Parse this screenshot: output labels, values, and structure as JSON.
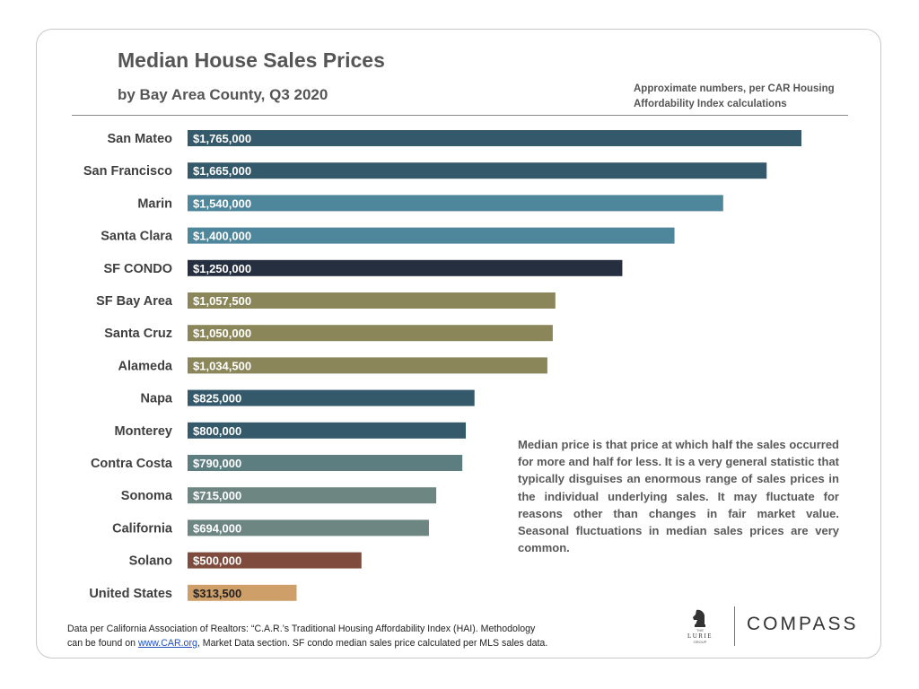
{
  "header": {
    "title": "Median House Sales Prices",
    "subtitle": "by Bay Area County, Q3 2020",
    "note_line1": "Approximate numbers, per CAR Housing",
    "note_line2": "Affordability Index calculations"
  },
  "description": "Median price is that price at which half the sales occurred for more and half for less. It is a very general statistic that typically disguises an enormous range of sales prices in the individual underlying sales. It may fluctuate for reasons other than changes in fair market value. Seasonal fluctuations in median sales prices are very common.",
  "footer": {
    "line1": "Data per California Association of Realtors: “C.A.R.’s Traditional Housing Affordability Index (HAI). Methodology",
    "line2_pre": "can be found on ",
    "link_text": "www.CAR.org",
    "line2_post": ",  Market Data section. SF condo median sales price calculated per MLS sales data."
  },
  "logos": {
    "lurie": "LURIE",
    "lurie_small_top": "THE",
    "lurie_small_bottom": "GROUP",
    "compass": "COMPASS"
  },
  "chart_data": {
    "type": "bar",
    "orientation": "horizontal",
    "title": "Median House Sales Prices",
    "subtitle": "by Bay Area County, Q3 2020",
    "categories": [
      "San Mateo",
      "San Francisco",
      "Marin",
      "Santa Clara",
      "SF CONDO",
      "SF Bay Area",
      "Santa Cruz",
      "Alameda",
      "Napa",
      "Monterey",
      "Contra Costa",
      "Sonoma",
      "California",
      "Solano",
      "United States"
    ],
    "values": [
      1765000,
      1665000,
      1540000,
      1400000,
      1250000,
      1057500,
      1050000,
      1034500,
      825000,
      800000,
      790000,
      715000,
      694000,
      500000,
      313500
    ],
    "labels": [
      "$1,765,000",
      "$1,665,000",
      "$1,540,000",
      "$1,400,000",
      "$1,250,000",
      "$1,057,500",
      "$1,050,000",
      "$1,034,500",
      "$825,000",
      "$800,000",
      "$790,000",
      "$715,000",
      "$694,000",
      "$500,000",
      "$313,500"
    ],
    "colors": [
      "#34596a",
      "#34596a",
      "#4e869c",
      "#4e869c",
      "#262f40",
      "#8b8659",
      "#8b8659",
      "#8b8659",
      "#34596a",
      "#34596a",
      "#5c7e81",
      "#6d8682",
      "#6d8682",
      "#7f4b3c",
      "#cf9f6a"
    ],
    "label_colors": [
      "#ffffff",
      "#ffffff",
      "#ffffff",
      "#ffffff",
      "#ffffff",
      "#ffffff",
      "#ffffff",
      "#ffffff",
      "#ffffff",
      "#ffffff",
      "#ffffff",
      "#ffffff",
      "#ffffff",
      "#ffffff",
      "#222222"
    ],
    "xlim": [
      0,
      1765000
    ],
    "grid": false,
    "legend": "none"
  }
}
